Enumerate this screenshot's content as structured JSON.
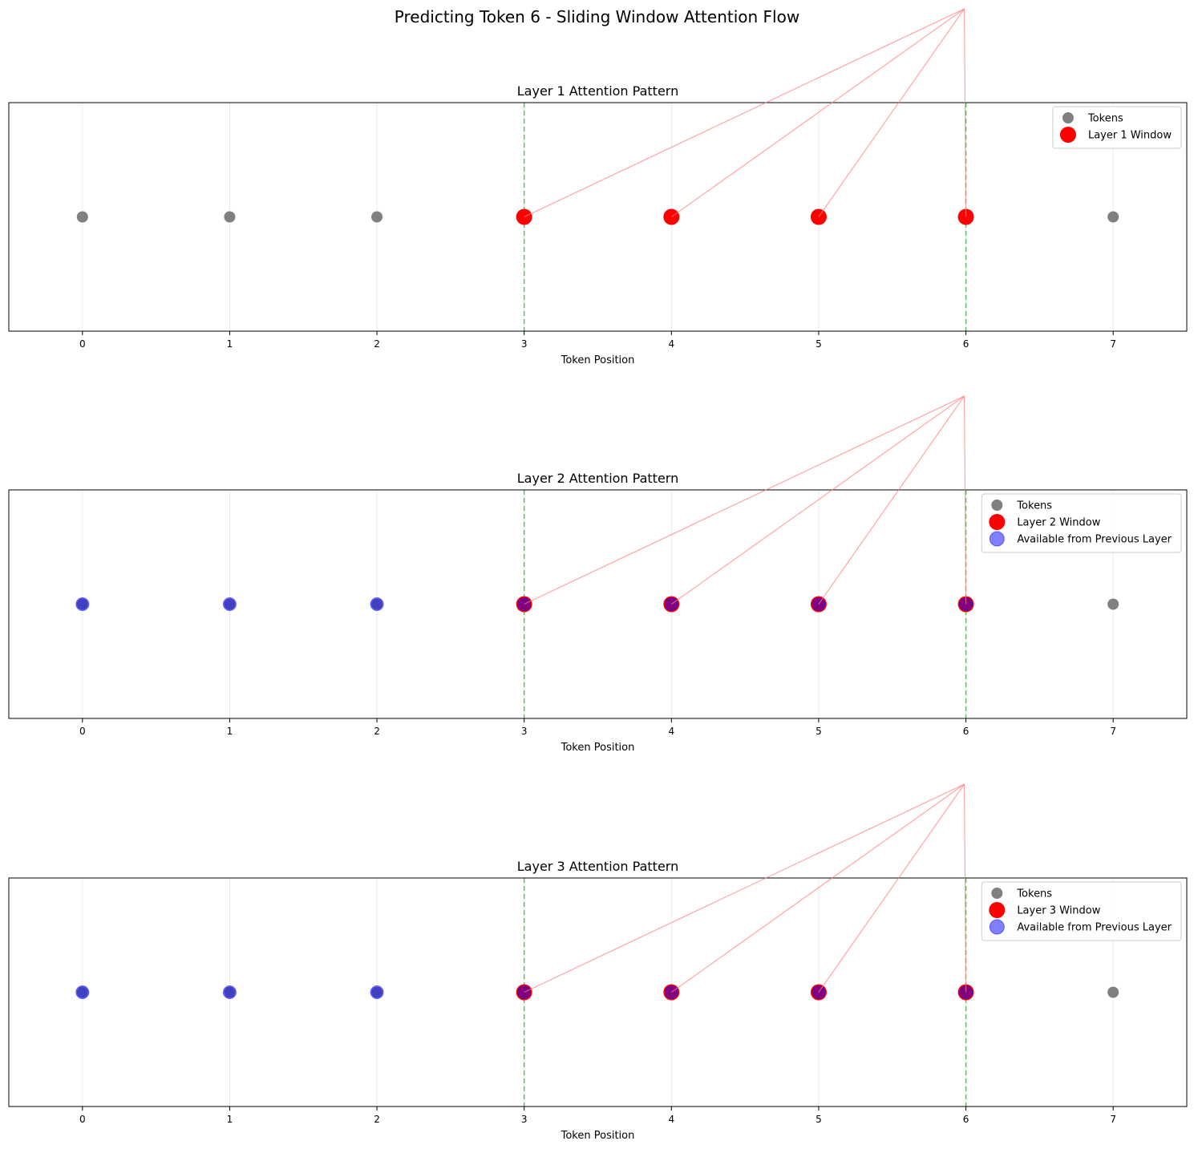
{
  "figure": {
    "title": "Predicting Token 6 - Sliding Window Attention Flow"
  },
  "colors": {
    "token": "#808080",
    "window": "#ff0000",
    "available": "#0000ff",
    "window_bound": "#2ca02c",
    "connection": "#ff8080",
    "grid": "#e6e6e6"
  },
  "chart_data": [
    {
      "type": "scatter",
      "title": "Layer 1 Attention Pattern",
      "xlabel": "Token Position",
      "ylabel": "",
      "xlim": [
        -0.5,
        7.5
      ],
      "xticks": [
        0,
        1,
        2,
        3,
        4,
        5,
        6,
        7
      ],
      "grid_x": true,
      "target_token": 6,
      "window_bounds": [
        3,
        6
      ],
      "legend_position": "top-right",
      "series": [
        {
          "name": "Tokens",
          "kind": "token",
          "x": [
            0,
            1,
            2,
            3,
            4,
            5,
            6,
            7
          ]
        },
        {
          "name": "Layer 1 Window",
          "kind": "window",
          "x": [
            3,
            4,
            5,
            6
          ]
        }
      ],
      "connections_to_target": [
        3,
        4,
        5,
        6
      ]
    },
    {
      "type": "scatter",
      "title": "Layer 2 Attention Pattern",
      "xlabel": "Token Position",
      "ylabel": "",
      "xlim": [
        -0.5,
        7.5
      ],
      "xticks": [
        0,
        1,
        2,
        3,
        4,
        5,
        6,
        7
      ],
      "grid_x": true,
      "target_token": 6,
      "window_bounds": [
        3,
        6
      ],
      "legend_position": "top-right",
      "series": [
        {
          "name": "Tokens",
          "kind": "token",
          "x": [
            0,
            1,
            2,
            3,
            4,
            5,
            6,
            7
          ]
        },
        {
          "name": "Layer 2 Window",
          "kind": "window",
          "x": [
            3,
            4,
            5,
            6
          ]
        },
        {
          "name": "Available from Previous Layer",
          "kind": "available",
          "x": [
            0,
            1,
            2,
            3,
            4,
            5,
            6
          ]
        }
      ],
      "connections_to_target": [
        3,
        4,
        5,
        6
      ]
    },
    {
      "type": "scatter",
      "title": "Layer 3 Attention Pattern",
      "xlabel": "Token Position",
      "ylabel": "",
      "xlim": [
        -0.5,
        7.5
      ],
      "xticks": [
        0,
        1,
        2,
        3,
        4,
        5,
        6,
        7
      ],
      "grid_x": true,
      "target_token": 6,
      "window_bounds": [
        3,
        6
      ],
      "legend_position": "top-right",
      "series": [
        {
          "name": "Tokens",
          "kind": "token",
          "x": [
            0,
            1,
            2,
            3,
            4,
            5,
            6,
            7
          ]
        },
        {
          "name": "Layer 3 Window",
          "kind": "window",
          "x": [
            3,
            4,
            5,
            6
          ]
        },
        {
          "name": "Available from Previous Layer",
          "kind": "available",
          "x": [
            0,
            1,
            2,
            3,
            4,
            5,
            6
          ]
        }
      ],
      "connections_to_target": [
        3,
        4,
        5,
        6
      ]
    }
  ]
}
